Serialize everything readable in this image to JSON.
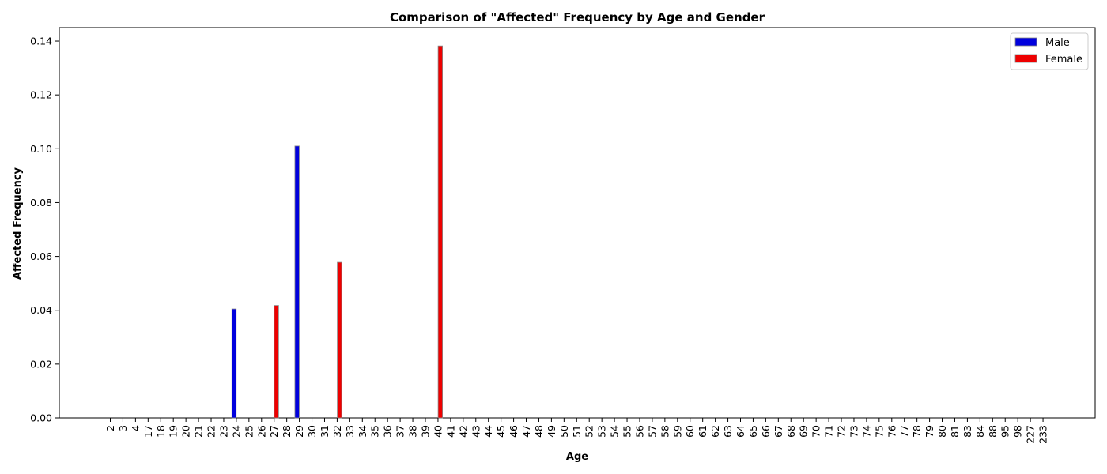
{
  "chart_data": {
    "type": "bar",
    "title": "Comparison of \"Affected\" Frequency by Age and Gender",
    "xlabel": "Age",
    "ylabel": "Affected Frequency",
    "ylim": [
      0,
      0.145
    ],
    "yticks": [
      "0.00",
      "0.02",
      "0.04",
      "0.06",
      "0.08",
      "0.10",
      "0.12",
      "0.14"
    ],
    "categories": [
      "2",
      "3",
      "4",
      "17",
      "18",
      "19",
      "20",
      "21",
      "22",
      "23",
      "24",
      "25",
      "26",
      "27",
      "28",
      "29",
      "30",
      "31",
      "32",
      "33",
      "34",
      "35",
      "36",
      "37",
      "38",
      "39",
      "40",
      "41",
      "42",
      "43",
      "44",
      "45",
      "46",
      "47",
      "48",
      "49",
      "50",
      "51",
      "52",
      "53",
      "54",
      "55",
      "56",
      "57",
      "58",
      "59",
      "60",
      "61",
      "62",
      "63",
      "64",
      "65",
      "66",
      "67",
      "68",
      "69",
      "70",
      "71",
      "72",
      "73",
      "74",
      "75",
      "76",
      "77",
      "78",
      "79",
      "80",
      "81",
      "83",
      "84",
      "88",
      "95",
      "98",
      "227",
      "233"
    ],
    "series": [
      {
        "name": "Male",
        "color": "#0000dd",
        "values": [
          0,
          0,
          0,
          0,
          0,
          0,
          0,
          0,
          0,
          0,
          0.0405,
          0,
          0,
          0,
          0,
          0.101,
          0,
          0,
          0,
          0,
          0,
          0,
          0,
          0,
          0,
          0,
          0,
          0,
          0,
          0,
          0,
          0,
          0,
          0,
          0,
          0,
          0,
          0,
          0,
          0,
          0,
          0,
          0,
          0,
          0,
          0,
          0,
          0,
          0,
          0,
          0,
          0,
          0,
          0,
          0,
          0,
          0,
          0,
          0,
          0,
          0,
          0,
          0,
          0,
          0,
          0,
          0,
          0,
          0,
          0,
          0,
          0,
          0,
          0,
          0
        ]
      },
      {
        "name": "Female",
        "color": "#ee0000",
        "values": [
          0,
          0,
          0,
          0,
          0,
          0,
          0,
          0,
          0,
          0,
          0,
          0,
          0,
          0.0418,
          0,
          0,
          0,
          0,
          0.0578,
          0,
          0,
          0,
          0,
          0,
          0,
          0,
          0.1382,
          0,
          0,
          0,
          0,
          0,
          0,
          0,
          0,
          0,
          0,
          0,
          0,
          0,
          0,
          0,
          0,
          0,
          0,
          0,
          0,
          0,
          0,
          0,
          0,
          0,
          0,
          0,
          0,
          0,
          0,
          0,
          0,
          0,
          0,
          0,
          0,
          0,
          0,
          0,
          0,
          0,
          0,
          0,
          0,
          0,
          0,
          0,
          0
        ]
      }
    ],
    "grid": false,
    "legend": "top-right"
  }
}
